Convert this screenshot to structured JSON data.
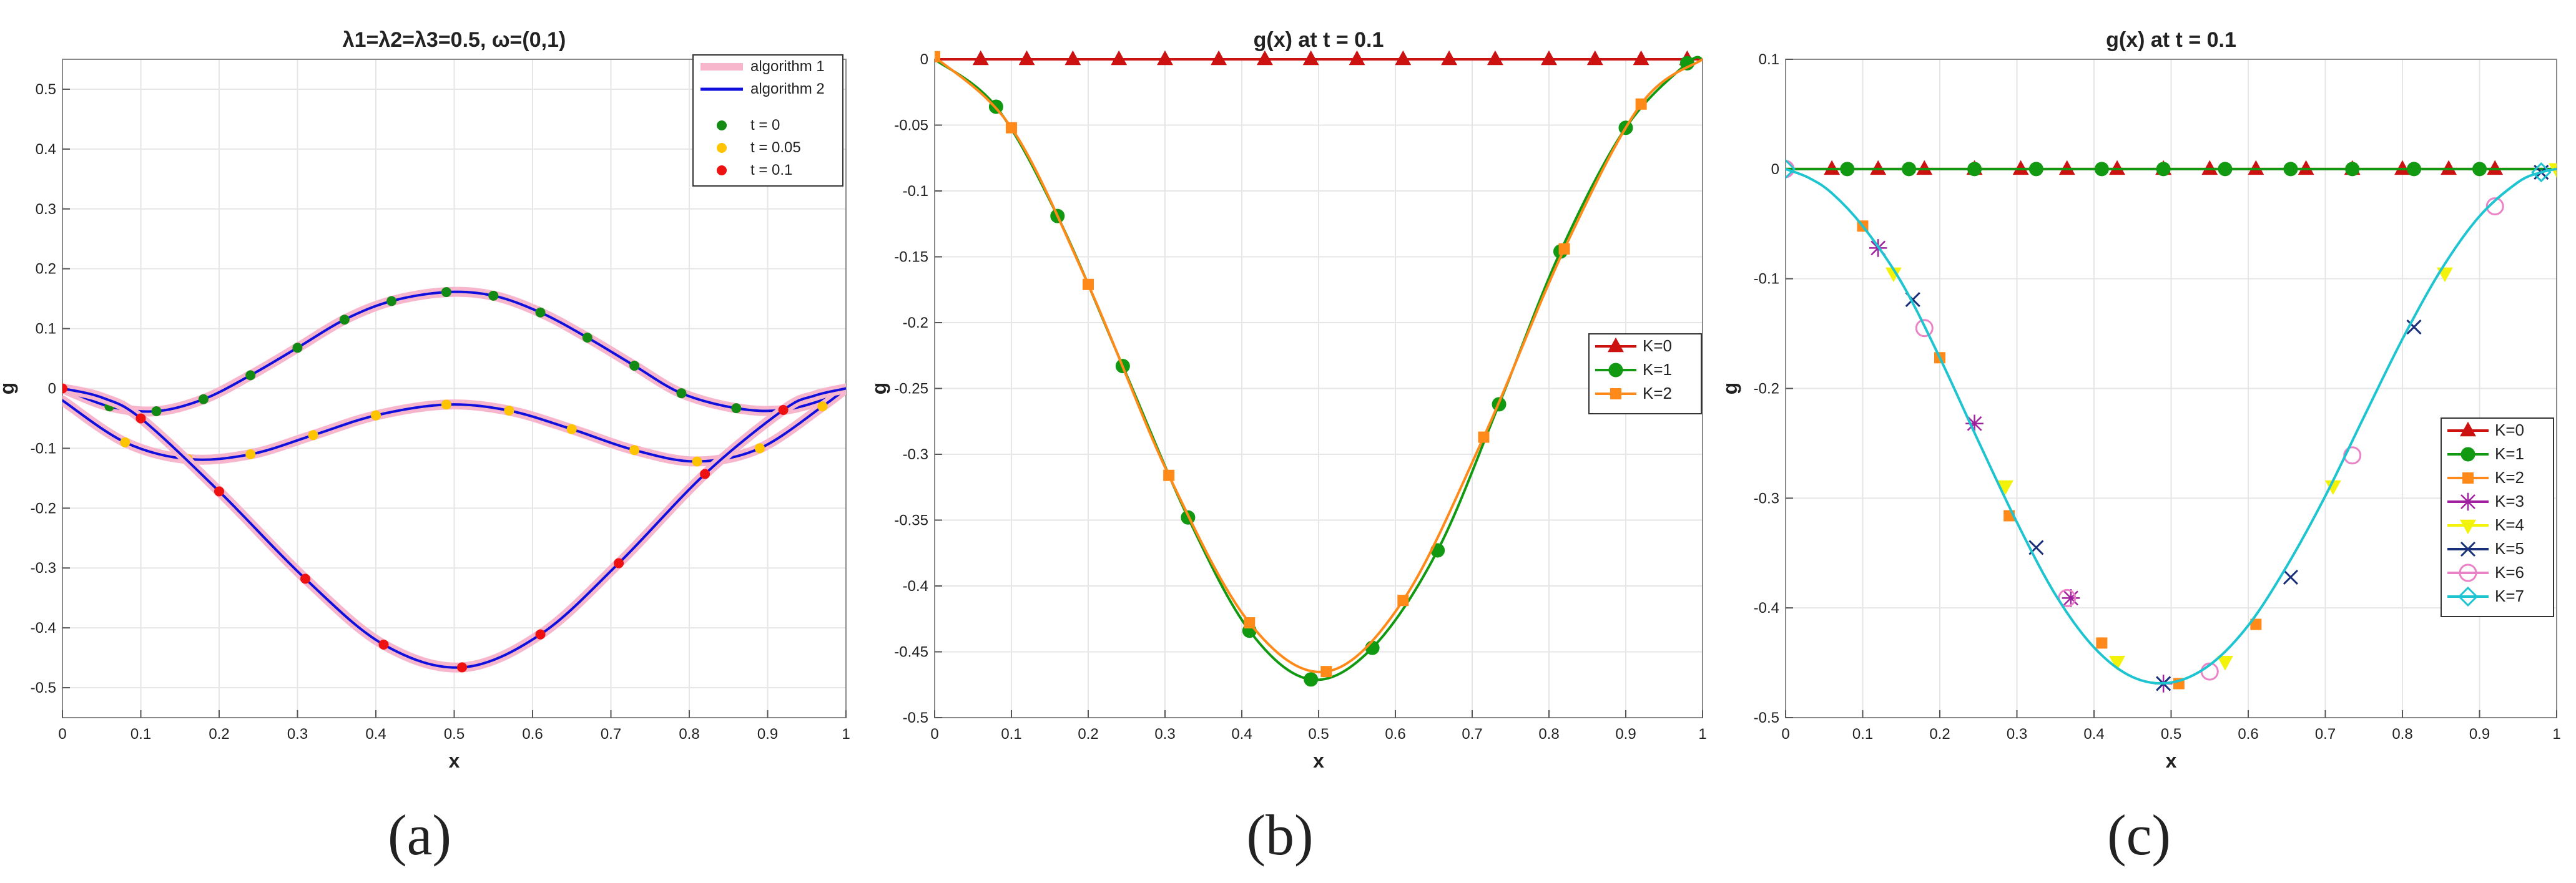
{
  "colors": {
    "k0": "#cc1111",
    "k1": "#119911",
    "k2": "#ff8a1a",
    "k3": "#a0209f",
    "k4": "#f2f20a",
    "k5": "#1a2f7a",
    "k6": "#ea82c5",
    "k7": "#1ec4cf",
    "t0": "#138a13",
    "t005": "#ffc400",
    "t01": "#ee1111",
    "alg1": "#f8b6cc",
    "alg2": "#1010dd",
    "grid": "#e6e6e6",
    "axis": "#000000"
  },
  "captions": [
    "(a)",
    "(b)",
    "(c)"
  ],
  "chart_data": [
    {
      "type": "line",
      "title": "λ1=λ2=λ3=0.5, ω=(0,1)",
      "xlabel": "x",
      "ylabel": "g",
      "xlim": [
        0,
        1
      ],
      "ylim": [
        -0.55,
        0.55
      ],
      "xticks": [
        0,
        0.1,
        0.2,
        0.3,
        0.4,
        0.5,
        0.6,
        0.7,
        0.8,
        0.9,
        1
      ],
      "xtick_labels": [
        "0",
        "0.1",
        "0.2",
        "0.3",
        "0.4",
        "0.5",
        "0.6",
        "0.7",
        "0.8",
        "0.9",
        "1"
      ],
      "yticks": [
        -0.5,
        -0.4,
        -0.3,
        -0.2,
        -0.1,
        0,
        0.1,
        0.2,
        0.3,
        0.4,
        0.5
      ],
      "ytick_labels": [
        "-0.5",
        "-0.4",
        "-0.3",
        "-0.2",
        "-0.1",
        "0",
        "0.1",
        "0.2",
        "0.3",
        "0.4",
        "0.5"
      ],
      "grid": true,
      "legend_position": "top-right",
      "legend": [
        {
          "label": "algorithm 1",
          "kind": "line",
          "color": "alg1"
        },
        {
          "label": "algorithm 2",
          "kind": "line",
          "color": "alg2"
        },
        {
          "label": "t = 0",
          "kind": "dot",
          "color": "t0"
        },
        {
          "label": "t = 0.05",
          "kind": "dot",
          "color": "t005"
        },
        {
          "label": "t = 0.1",
          "kind": "dot",
          "color": "t01"
        }
      ],
      "series": [
        {
          "name": "t = 0",
          "color": "t0",
          "x": [
            0,
            0.06,
            0.12,
            0.18,
            0.24,
            0.3,
            0.36,
            0.42,
            0.49,
            0.55,
            0.61,
            0.67,
            0.73,
            0.79,
            0.86,
            0.92,
            0.98,
            1.0
          ],
          "y": [
            0,
            -0.03,
            -0.038,
            -0.018,
            0.022,
            0.068,
            0.115,
            0.146,
            0.161,
            0.155,
            0.127,
            0.085,
            0.038,
            -0.008,
            -0.033,
            -0.036,
            -0.015,
            0
          ],
          "markers_x": [
            0.06,
            0.12,
            0.18,
            0.24,
            0.3,
            0.36,
            0.42,
            0.49,
            0.55,
            0.61,
            0.67,
            0.73,
            0.79,
            0.86,
            0.92,
            0.98
          ],
          "markers_y": [
            -0.03,
            -0.038,
            -0.018,
            0.022,
            0.068,
            0.115,
            0.146,
            0.161,
            0.155,
            0.127,
            0.085,
            0.038,
            -0.008,
            -0.033,
            -0.036,
            -0.015
          ]
        },
        {
          "name": "t = 0.05",
          "color": "t005",
          "x": [
            0,
            0.08,
            0.16,
            0.24,
            0.32,
            0.4,
            0.49,
            0.57,
            0.65,
            0.73,
            0.81,
            0.89,
            0.97,
            1.0
          ],
          "y": [
            -0.02,
            -0.09,
            -0.118,
            -0.11,
            -0.078,
            -0.045,
            -0.027,
            -0.037,
            -0.068,
            -0.103,
            -0.122,
            -0.1,
            -0.03,
            0
          ],
          "markers_x": [
            0.08,
            0.16,
            0.24,
            0.32,
            0.4,
            0.49,
            0.57,
            0.65,
            0.73,
            0.81,
            0.89,
            0.97
          ],
          "markers_y": [
            -0.09,
            -0.118,
            -0.11,
            -0.078,
            -0.045,
            -0.027,
            -0.037,
            -0.068,
            -0.103,
            -0.122,
            -0.1,
            -0.03
          ]
        },
        {
          "name": "t = 0.1",
          "color": "t01",
          "x": [
            0,
            0.05,
            0.1,
            0.2,
            0.31,
            0.41,
            0.51,
            0.61,
            0.71,
            0.82,
            0.92,
            0.96,
            1.0
          ],
          "y": [
            0,
            -0.015,
            -0.05,
            -0.172,
            -0.318,
            -0.428,
            -0.466,
            -0.411,
            -0.292,
            -0.143,
            -0.036,
            -0.012,
            0
          ],
          "markers_x": [
            0,
            0.1,
            0.2,
            0.31,
            0.41,
            0.51,
            0.61,
            0.71,
            0.82,
            0.92
          ],
          "markers_y": [
            0,
            -0.05,
            -0.172,
            -0.318,
            -0.428,
            -0.466,
            -0.411,
            -0.292,
            -0.143,
            -0.036
          ]
        }
      ]
    },
    {
      "type": "line",
      "title": "g(x) at t = 0.1",
      "xlabel": "x",
      "ylabel": "g",
      "xlim": [
        0,
        1
      ],
      "ylim": [
        -0.5,
        0
      ],
      "xticks": [
        0,
        0.1,
        0.2,
        0.3,
        0.4,
        0.5,
        0.6,
        0.7,
        0.8,
        0.9,
        1
      ],
      "xtick_labels": [
        "0",
        "0.1",
        "0.2",
        "0.3",
        "0.4",
        "0.5",
        "0.6",
        "0.7",
        "0.8",
        "0.9",
        "1"
      ],
      "yticks": [
        -0.5,
        -0.45,
        -0.4,
        -0.35,
        -0.3,
        -0.25,
        -0.2,
        -0.15,
        -0.1,
        -0.05,
        0
      ],
      "ytick_labels": [
        "-0.5",
        "-0.45",
        "-0.4",
        "-0.35",
        "-0.3",
        "-0.25",
        "-0.2",
        "-0.15",
        "-0.1",
        "-0.05",
        "0"
      ],
      "grid": true,
      "legend_position": "right",
      "series": [
        {
          "name": "K=0",
          "color": "k0",
          "marker": "triangle",
          "x": [
            0,
            0.06,
            0.12,
            0.18,
            0.24,
            0.3,
            0.37,
            0.43,
            0.49,
            0.55,
            0.61,
            0.67,
            0.73,
            0.8,
            0.86,
            0.92,
            0.98,
            1.0
          ],
          "y": [
            0,
            0,
            0,
            0,
            0,
            0,
            0,
            0,
            0,
            0,
            0,
            0,
            0,
            0,
            0,
            0,
            0,
            0
          ],
          "markers_x": [
            0.06,
            0.12,
            0.18,
            0.24,
            0.3,
            0.37,
            0.43,
            0.49,
            0.55,
            0.61,
            0.67,
            0.73,
            0.8,
            0.86,
            0.92,
            0.98
          ],
          "markers_y": [
            0,
            0,
            0,
            0,
            0,
            0,
            0,
            0,
            0,
            0,
            0,
            0,
            0,
            0,
            0,
            0
          ]
        },
        {
          "name": "K=1",
          "color": "k1",
          "marker": "circle",
          "x": [
            0,
            0.08,
            0.16,
            0.245,
            0.33,
            0.41,
            0.49,
            0.57,
            0.655,
            0.735,
            0.815,
            0.9,
            0.98,
            1.0
          ],
          "y": [
            0,
            -0.036,
            -0.119,
            -0.233,
            -0.348,
            -0.434,
            -0.471,
            -0.447,
            -0.373,
            -0.262,
            -0.146,
            -0.052,
            -0.003,
            0
          ],
          "markers_x": [
            0.08,
            0.16,
            0.245,
            0.33,
            0.41,
            0.49,
            0.57,
            0.655,
            0.735,
            0.815,
            0.9,
            0.98
          ],
          "markers_y": [
            -0.036,
            -0.119,
            -0.233,
            -0.348,
            -0.434,
            -0.471,
            -0.447,
            -0.373,
            -0.262,
            -0.146,
            -0.052,
            -0.003
          ]
        },
        {
          "name": "K=2",
          "color": "k2",
          "marker": "square",
          "x": [
            0,
            0.1,
            0.2,
            0.305,
            0.41,
            0.51,
            0.61,
            0.715,
            0.82,
            0.92,
            1.0
          ],
          "y": [
            0.002,
            -0.052,
            -0.171,
            -0.316,
            -0.428,
            -0.465,
            -0.411,
            -0.287,
            -0.144,
            -0.034,
            0
          ],
          "markers_x": [
            0,
            0.1,
            0.2,
            0.305,
            0.41,
            0.51,
            0.61,
            0.715,
            0.82,
            0.92
          ],
          "markers_y": [
            0.002,
            -0.052,
            -0.171,
            -0.316,
            -0.428,
            -0.465,
            -0.411,
            -0.287,
            -0.144,
            -0.034
          ]
        }
      ]
    },
    {
      "type": "line",
      "title": "g(x) at t = 0.1",
      "xlabel": "x",
      "ylabel": "g",
      "xlim": [
        0,
        1
      ],
      "ylim": [
        -0.5,
        0.1
      ],
      "xticks": [
        0,
        0.1,
        0.2,
        0.3,
        0.4,
        0.5,
        0.6,
        0.7,
        0.8,
        0.9,
        1
      ],
      "xtick_labels": [
        "0",
        "0.1",
        "0.2",
        "0.3",
        "0.4",
        "0.5",
        "0.6",
        "0.7",
        "0.8",
        "0.9",
        "1"
      ],
      "yticks": [
        -0.5,
        -0.4,
        -0.3,
        -0.2,
        -0.1,
        0,
        0.1
      ],
      "ytick_labels": [
        "-0.5",
        "-0.4",
        "-0.3",
        "-0.2",
        "-0.1",
        "0",
        "0.1"
      ],
      "grid": true,
      "legend_position": "bottom-right",
      "series": [
        {
          "name": "K=0",
          "color": "k0",
          "marker": "triangle",
          "x": [
            0,
            0.06,
            0.12,
            0.18,
            0.245,
            0.305,
            0.365,
            0.43,
            0.49,
            0.55,
            0.61,
            0.675,
            0.735,
            0.8,
            0.86,
            0.92,
            0.98,
            1.0
          ],
          "y": [
            0,
            0,
            0,
            0,
            0,
            0,
            0,
            0,
            0,
            0,
            0,
            0,
            0,
            0,
            0,
            0,
            0,
            0
          ],
          "markers_x": [
            0.06,
            0.12,
            0.18,
            0.245,
            0.305,
            0.365,
            0.43,
            0.49,
            0.55,
            0.61,
            0.675,
            0.735,
            0.8,
            0.86,
            0.92
          ],
          "markers_y": [
            0,
            0,
            0,
            0,
            0,
            0,
            0,
            0,
            0,
            0,
            0,
            0,
            0,
            0,
            0
          ]
        },
        {
          "name": "K=1",
          "color": "k1",
          "marker": "circle",
          "x": [
            0,
            0.08,
            0.16,
            0.245,
            0.325,
            0.41,
            0.49,
            0.57,
            0.655,
            0.735,
            0.815,
            0.9,
            0.98,
            1.0
          ],
          "y": [
            0,
            0,
            0,
            0,
            0,
            0,
            0,
            0,
            0,
            0,
            0,
            0,
            0,
            0
          ],
          "markers_x": [
            0.08,
            0.16,
            0.245,
            0.325,
            0.41,
            0.49,
            0.57,
            0.655,
            0.735,
            0.815,
            0.9
          ],
          "markers_y": [
            0,
            0,
            0,
            0,
            0,
            0,
            0,
            0,
            0,
            0,
            0
          ]
        },
        {
          "name": "K=2",
          "color": "k2",
          "marker": "square",
          "x": [
            0.1,
            0.2,
            0.29,
            0.41,
            0.51,
            0.61
          ],
          "y": [
            -0.052,
            -0.172,
            -0.316,
            -0.432,
            -0.469,
            -0.415
          ],
          "markers_x": [
            0.1,
            0.2,
            0.29,
            0.41,
            0.51,
            0.61
          ],
          "markers_y": [
            -0.052,
            -0.172,
            -0.316,
            -0.432,
            -0.469,
            -0.415
          ]
        },
        {
          "name": "K=3",
          "color": "k3",
          "marker": "star",
          "x": [
            0.12,
            0.245,
            0.37,
            0.49
          ],
          "y": [
            -0.072,
            -0.232,
            -0.391,
            -0.469
          ],
          "markers_x": [
            0.12,
            0.245,
            0.37,
            0.49
          ],
          "markers_y": [
            -0.072,
            -0.232,
            -0.391,
            -0.469
          ]
        },
        {
          "name": "K=4",
          "color": "k4",
          "marker": "triangle-down",
          "x": [
            0.14,
            0.285,
            0.43,
            0.57,
            0.71,
            0.855,
            1.0
          ],
          "y": [
            -0.095,
            -0.289,
            -0.449,
            -0.449,
            -0.289,
            -0.095,
            0
          ],
          "markers_x": [
            0.14,
            0.285,
            0.43,
            0.57,
            0.71,
            0.855,
            1.0
          ],
          "markers_y": [
            -0.095,
            -0.289,
            -0.449,
            -0.449,
            -0.289,
            -0.095,
            0
          ]
        },
        {
          "name": "K=5",
          "color": "k5",
          "marker": "x",
          "x": [
            0.165,
            0.325,
            0.49,
            0.655,
            0.815,
            0.98
          ],
          "y": [
            -0.119,
            -0.345,
            -0.469,
            -0.372,
            -0.144,
            -0.003
          ],
          "markers_x": [
            0.165,
            0.325,
            0.49,
            0.655,
            0.815,
            0.98
          ],
          "markers_y": [
            -0.119,
            -0.345,
            -0.469,
            -0.372,
            -0.144,
            -0.003
          ]
        },
        {
          "name": "K=6",
          "color": "k6",
          "marker": "circle-open",
          "x": [
            0,
            0.18,
            0.365,
            0.55,
            0.735,
            0.92
          ],
          "y": [
            0,
            -0.145,
            -0.391,
            -0.458,
            -0.261,
            -0.034
          ],
          "markers_x": [
            0,
            0.18,
            0.365,
            0.55,
            0.735,
            0.92
          ],
          "markers_y": [
            0,
            -0.145,
            -0.391,
            -0.458,
            -0.261,
            -0.034
          ]
        },
        {
          "name": "K=7",
          "color": "k7",
          "marker": "diamond-open",
          "x": [
            0,
            0.03,
            0.06,
            0.1,
            0.15,
            0.2,
            0.25,
            0.3,
            0.35,
            0.4,
            0.45,
            0.5,
            0.55,
            0.6,
            0.65,
            0.7,
            0.75,
            0.8,
            0.85,
            0.9,
            0.95,
            0.98,
            1.0
          ],
          "y": [
            0,
            -0.008,
            -0.022,
            -0.052,
            -0.103,
            -0.172,
            -0.248,
            -0.322,
            -0.388,
            -0.436,
            -0.463,
            -0.468,
            -0.452,
            -0.416,
            -0.362,
            -0.298,
            -0.226,
            -0.155,
            -0.092,
            -0.043,
            -0.012,
            -0.003,
            0
          ],
          "markers_x": [
            0,
            0.98
          ],
          "markers_y": [
            0,
            -0.003
          ]
        }
      ]
    }
  ]
}
